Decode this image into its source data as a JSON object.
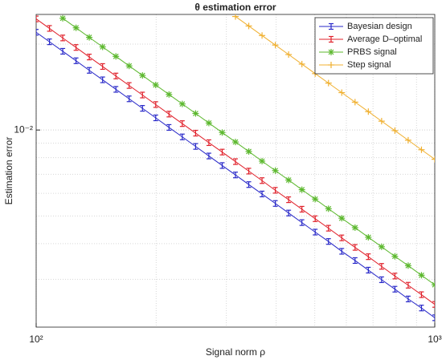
{
  "chart_data": {
    "type": "line",
    "title": "θ estimation error",
    "xlabel": "Signal norm ρ",
    "ylabel": "Estimation error",
    "xlog": true,
    "ylog": true,
    "grid": true,
    "legend": "upper right",
    "xlim": [
      100,
      1000
    ],
    "ylim": [
      0.00204,
      0.0254
    ],
    "xticks": [
      {
        "value": 100,
        "label": "10²"
      },
      {
        "value": 1000,
        "label": "10³"
      }
    ],
    "yticks": [
      {
        "value": 0.01,
        "label": "10⁻²"
      }
    ],
    "x": [
      100,
      108,
      116.6,
      125.9,
      135.9,
      146.8,
      158.5,
      171.1,
      184.8,
      199.5,
      215.4,
      232.6,
      251.2,
      271.2,
      292.9,
      316.2,
      341.5,
      368.7,
      398.1,
      429.9,
      464.2,
      501.2,
      541.2,
      584.3,
      631,
      681.3,
      735.6,
      794.3,
      857.7,
      926.1,
      1000
    ],
    "series": [
      {
        "name": "Bayesian design",
        "color": "#2727c8",
        "marker": "errorbar",
        "values": [
          0.022,
          0.02037,
          0.01887,
          0.01748,
          0.01618,
          0.01499,
          0.01388,
          0.01286,
          0.01191,
          0.01103,
          0.01021,
          0.00946,
          0.00876,
          0.00811,
          0.00751,
          0.00696,
          0.00644,
          0.00597,
          0.00553,
          0.00512,
          0.00474,
          0.00439,
          0.00407,
          0.00376,
          0.00349,
          0.00323,
          0.00299,
          0.00277,
          0.00256,
          0.00238,
          0.0022
        ]
      },
      {
        "name": "Average D–optimal",
        "color": "#e0202a",
        "marker": "errorbar",
        "values": [
          0.0245,
          0.02269,
          0.02101,
          0.01946,
          0.01802,
          0.01669,
          0.01546,
          0.01432,
          0.01326,
          0.01228,
          0.01137,
          0.01053,
          0.00975,
          0.00903,
          0.00837,
          0.00775,
          0.00718,
          0.00665,
          0.00615,
          0.0057,
          0.00528,
          0.00489,
          0.00453,
          0.00419,
          0.00388,
          0.0036,
          0.00333,
          0.00308,
          0.00286,
          0.00265,
          0.00245
        ]
      },
      {
        "name": "PRBS signal",
        "color": "#5cb82e",
        "marker": "star",
        "values": [
          null,
          null,
          0.02462,
          0.0228,
          0.02111,
          0.01955,
          0.01811,
          0.01677,
          0.01553,
          0.01438,
          0.01332,
          0.01234,
          0.01143,
          0.01058,
          0.0098,
          0.00908,
          0.00841,
          0.00778,
          0.00721,
          0.00668,
          0.00618,
          0.00573,
          0.0053,
          0.00491,
          0.00455,
          0.00421,
          0.0039,
          0.00361,
          0.00335,
          0.0031,
          0.00287
        ]
      },
      {
        "name": "Step signal",
        "color": "#f0b030",
        "marker": "plus",
        "values": [
          null,
          null,
          null,
          null,
          null,
          null,
          null,
          null,
          null,
          null,
          null,
          null,
          null,
          null,
          null,
          0.02498,
          0.02314,
          0.02143,
          0.01984,
          0.01838,
          0.01702,
          0.01576,
          0.0146,
          0.01352,
          0.01252,
          0.0116,
          0.01074,
          0.00995,
          0.00921,
          0.00853,
          0.0079
        ]
      }
    ]
  }
}
